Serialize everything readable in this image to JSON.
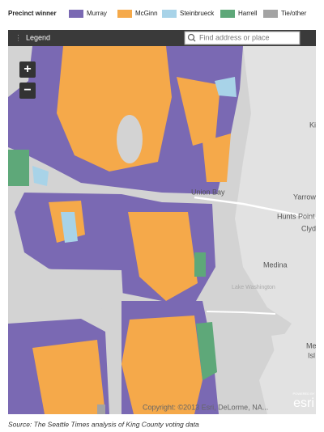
{
  "legend": {
    "title": "Precinct winner",
    "items": [
      {
        "label": "Murray",
        "color": "#7a69b3"
      },
      {
        "label": "McGinn",
        "color": "#f5a94a"
      },
      {
        "label": "Steinbrueck",
        "color": "#a8d3e8"
      },
      {
        "label": "Harrell",
        "color": "#5ea879"
      },
      {
        "label": "Tie/other",
        "color": "#a3a3a3"
      }
    ]
  },
  "toolbar": {
    "legend_button": "Legend",
    "search_placeholder": "Find address or place"
  },
  "map": {
    "zoom_in": "+",
    "zoom_out": "−",
    "labels": [
      "Union Bay",
      "Ki",
      "Yarrow",
      "Hunts Point",
      "Clyd",
      "Medina",
      "Lake Washington",
      "Me",
      "Isl"
    ],
    "copyright": "Copyright: ©2013 Esri, DeLorme, NA...",
    "logo_caption": "POWERED BY",
    "logo": "esri"
  },
  "source": "Source: The Seattle Times analysis of King County voting data"
}
